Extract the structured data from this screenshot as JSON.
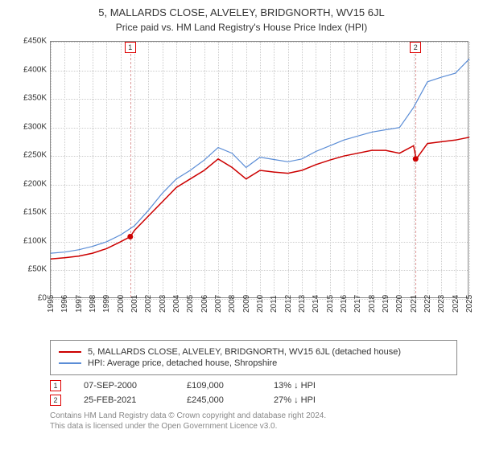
{
  "title": "5, MALLARDS CLOSE, ALVELEY, BRIDGNORTH, WV15 6JL",
  "subtitle": "Price paid vs. HM Land Registry's House Price Index (HPI)",
  "chart": {
    "type": "line",
    "ylabel_prefix": "£",
    "ylim": [
      0,
      450
    ],
    "ytick_step": 50,
    "yticks": [
      "£0",
      "£50K",
      "£100K",
      "£150K",
      "£200K",
      "£250K",
      "£300K",
      "£350K",
      "£400K",
      "£450K"
    ],
    "xlim": [
      1995,
      2025
    ],
    "xticks": [
      1995,
      1996,
      1997,
      1998,
      1999,
      2000,
      2001,
      2002,
      2003,
      2004,
      2005,
      2006,
      2007,
      2008,
      2009,
      2010,
      2011,
      2012,
      2013,
      2014,
      2015,
      2016,
      2017,
      2018,
      2019,
      2020,
      2021,
      2022,
      2023,
      2024,
      2025
    ],
    "grid_color": "#cccccc",
    "border_color": "#888888",
    "background_color": "#ffffff",
    "series": [
      {
        "name": "property",
        "label": "5, MALLARDS CLOSE, ALVELEY, BRIDGNORTH, WV15 6JL (detached house)",
        "color": "#cc0000",
        "line_width": 1.5,
        "x": [
          1995,
          1996,
          1997,
          1998,
          1999,
          2000,
          2000.7,
          2001,
          2002,
          2003,
          2004,
          2005,
          2006,
          2007,
          2008,
          2009,
          2010,
          2011,
          2012,
          2013,
          2014,
          2015,
          2016,
          2017,
          2018,
          2019,
          2020,
          2021,
          2021.2,
          2022,
          2023,
          2024,
          2025
        ],
        "y": [
          70,
          72,
          75,
          80,
          88,
          100,
          109,
          120,
          145,
          170,
          195,
          210,
          225,
          245,
          230,
          210,
          225,
          222,
          220,
          225,
          235,
          243,
          250,
          255,
          260,
          260,
          255,
          268,
          245,
          272,
          275,
          278,
          283
        ]
      },
      {
        "name": "hpi",
        "label": "HPI: Average price, detached house, Shropshire",
        "color": "#5b8dd6",
        "line_width": 1.2,
        "x": [
          1995,
          1996,
          1997,
          1998,
          1999,
          2000,
          2001,
          2002,
          2003,
          2004,
          2005,
          2006,
          2007,
          2008,
          2009,
          2010,
          2011,
          2012,
          2013,
          2014,
          2015,
          2016,
          2017,
          2018,
          2019,
          2020,
          2021,
          2022,
          2023,
          2024,
          2025
        ],
        "y": [
          80,
          82,
          86,
          92,
          100,
          112,
          128,
          155,
          185,
          210,
          225,
          243,
          265,
          255,
          230,
          248,
          244,
          240,
          245,
          258,
          268,
          278,
          285,
          292,
          296,
          300,
          335,
          380,
          388,
          395,
          420
        ]
      }
    ],
    "markers": [
      {
        "id": "1",
        "x": 2000.7,
        "y": 109,
        "label_y": 440
      },
      {
        "id": "2",
        "x": 2021.15,
        "y": 245,
        "label_y": 440
      }
    ]
  },
  "legend": {
    "title": ""
  },
  "transactions": [
    {
      "id": "1",
      "date": "07-SEP-2000",
      "price": "£109,000",
      "delta": "13% ↓ HPI"
    },
    {
      "id": "2",
      "date": "25-FEB-2021",
      "price": "£245,000",
      "delta": "27% ↓ HPI"
    }
  ],
  "footer_line1": "Contains HM Land Registry data © Crown copyright and database right 2024.",
  "footer_line2": "This data is licensed under the Open Government Licence v3.0."
}
